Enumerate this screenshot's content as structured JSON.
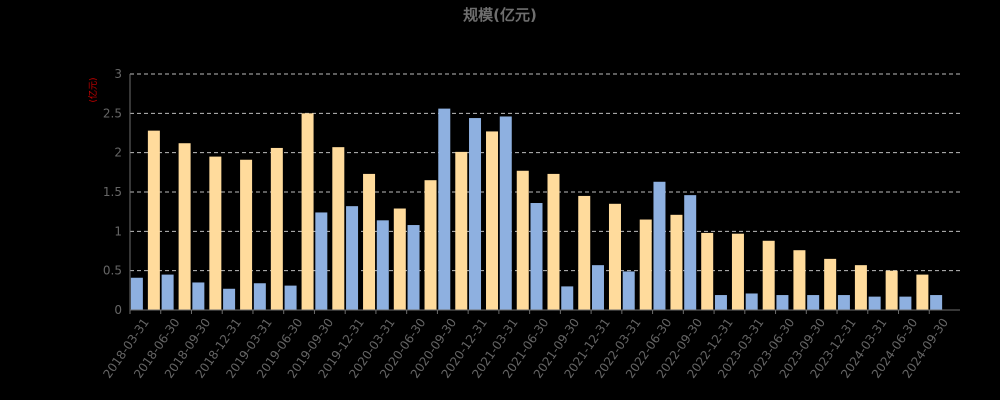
{
  "chart_data": {
    "type": "bar",
    "title": "规模(亿元)",
    "ylabel": "(亿元)",
    "ylim": [
      0,
      3
    ],
    "yticks": [
      "0",
      "0.5",
      "1",
      "1.5",
      "2",
      "2.5",
      "3"
    ],
    "grid": true,
    "categories": [
      "2018-03-31",
      "2018-06-30",
      "2018-09-30",
      "2018-12-31",
      "2019-03-31",
      "2019-06-30",
      "2019-09-30",
      "2019-12-31",
      "2020-03-31",
      "2020-06-30",
      "2020-09-30",
      "2020-12-31",
      "2021-03-31",
      "2021-06-30",
      "2021-09-30",
      "2021-12-31",
      "2022-03-31",
      "2022-06-30",
      "2022-09-30",
      "2022-12-31",
      "2023-03-31",
      "2023-06-30",
      "2023-09-30",
      "2023-12-31",
      "2024-03-31",
      "2024-06-30",
      "2024-09-30"
    ],
    "series": [
      {
        "color": "#8eb0e0",
        "values": [
          0.41,
          0.45,
          0.35,
          0.27,
          0.34,
          0.31,
          1.24,
          1.32,
          1.14,
          1.08,
          2.56,
          2.44,
          2.46,
          1.36,
          0.3,
          0.57,
          0.49,
          1.63,
          1.46,
          0.19,
          0.21,
          0.19,
          0.19,
          0.19,
          0.17,
          0.17,
          0.19
        ]
      },
      {
        "color": "#ffdb9c",
        "values": [
          2.28,
          2.12,
          1.95,
          1.91,
          2.06,
          2.5,
          2.07,
          1.73,
          1.29,
          1.65,
          2.01,
          2.27,
          1.77,
          1.73,
          1.45,
          1.35,
          1.15,
          1.21,
          0.98,
          0.97,
          0.88,
          0.76,
          0.65,
          0.57,
          0.5,
          0.45,
          null
        ]
      }
    ]
  }
}
